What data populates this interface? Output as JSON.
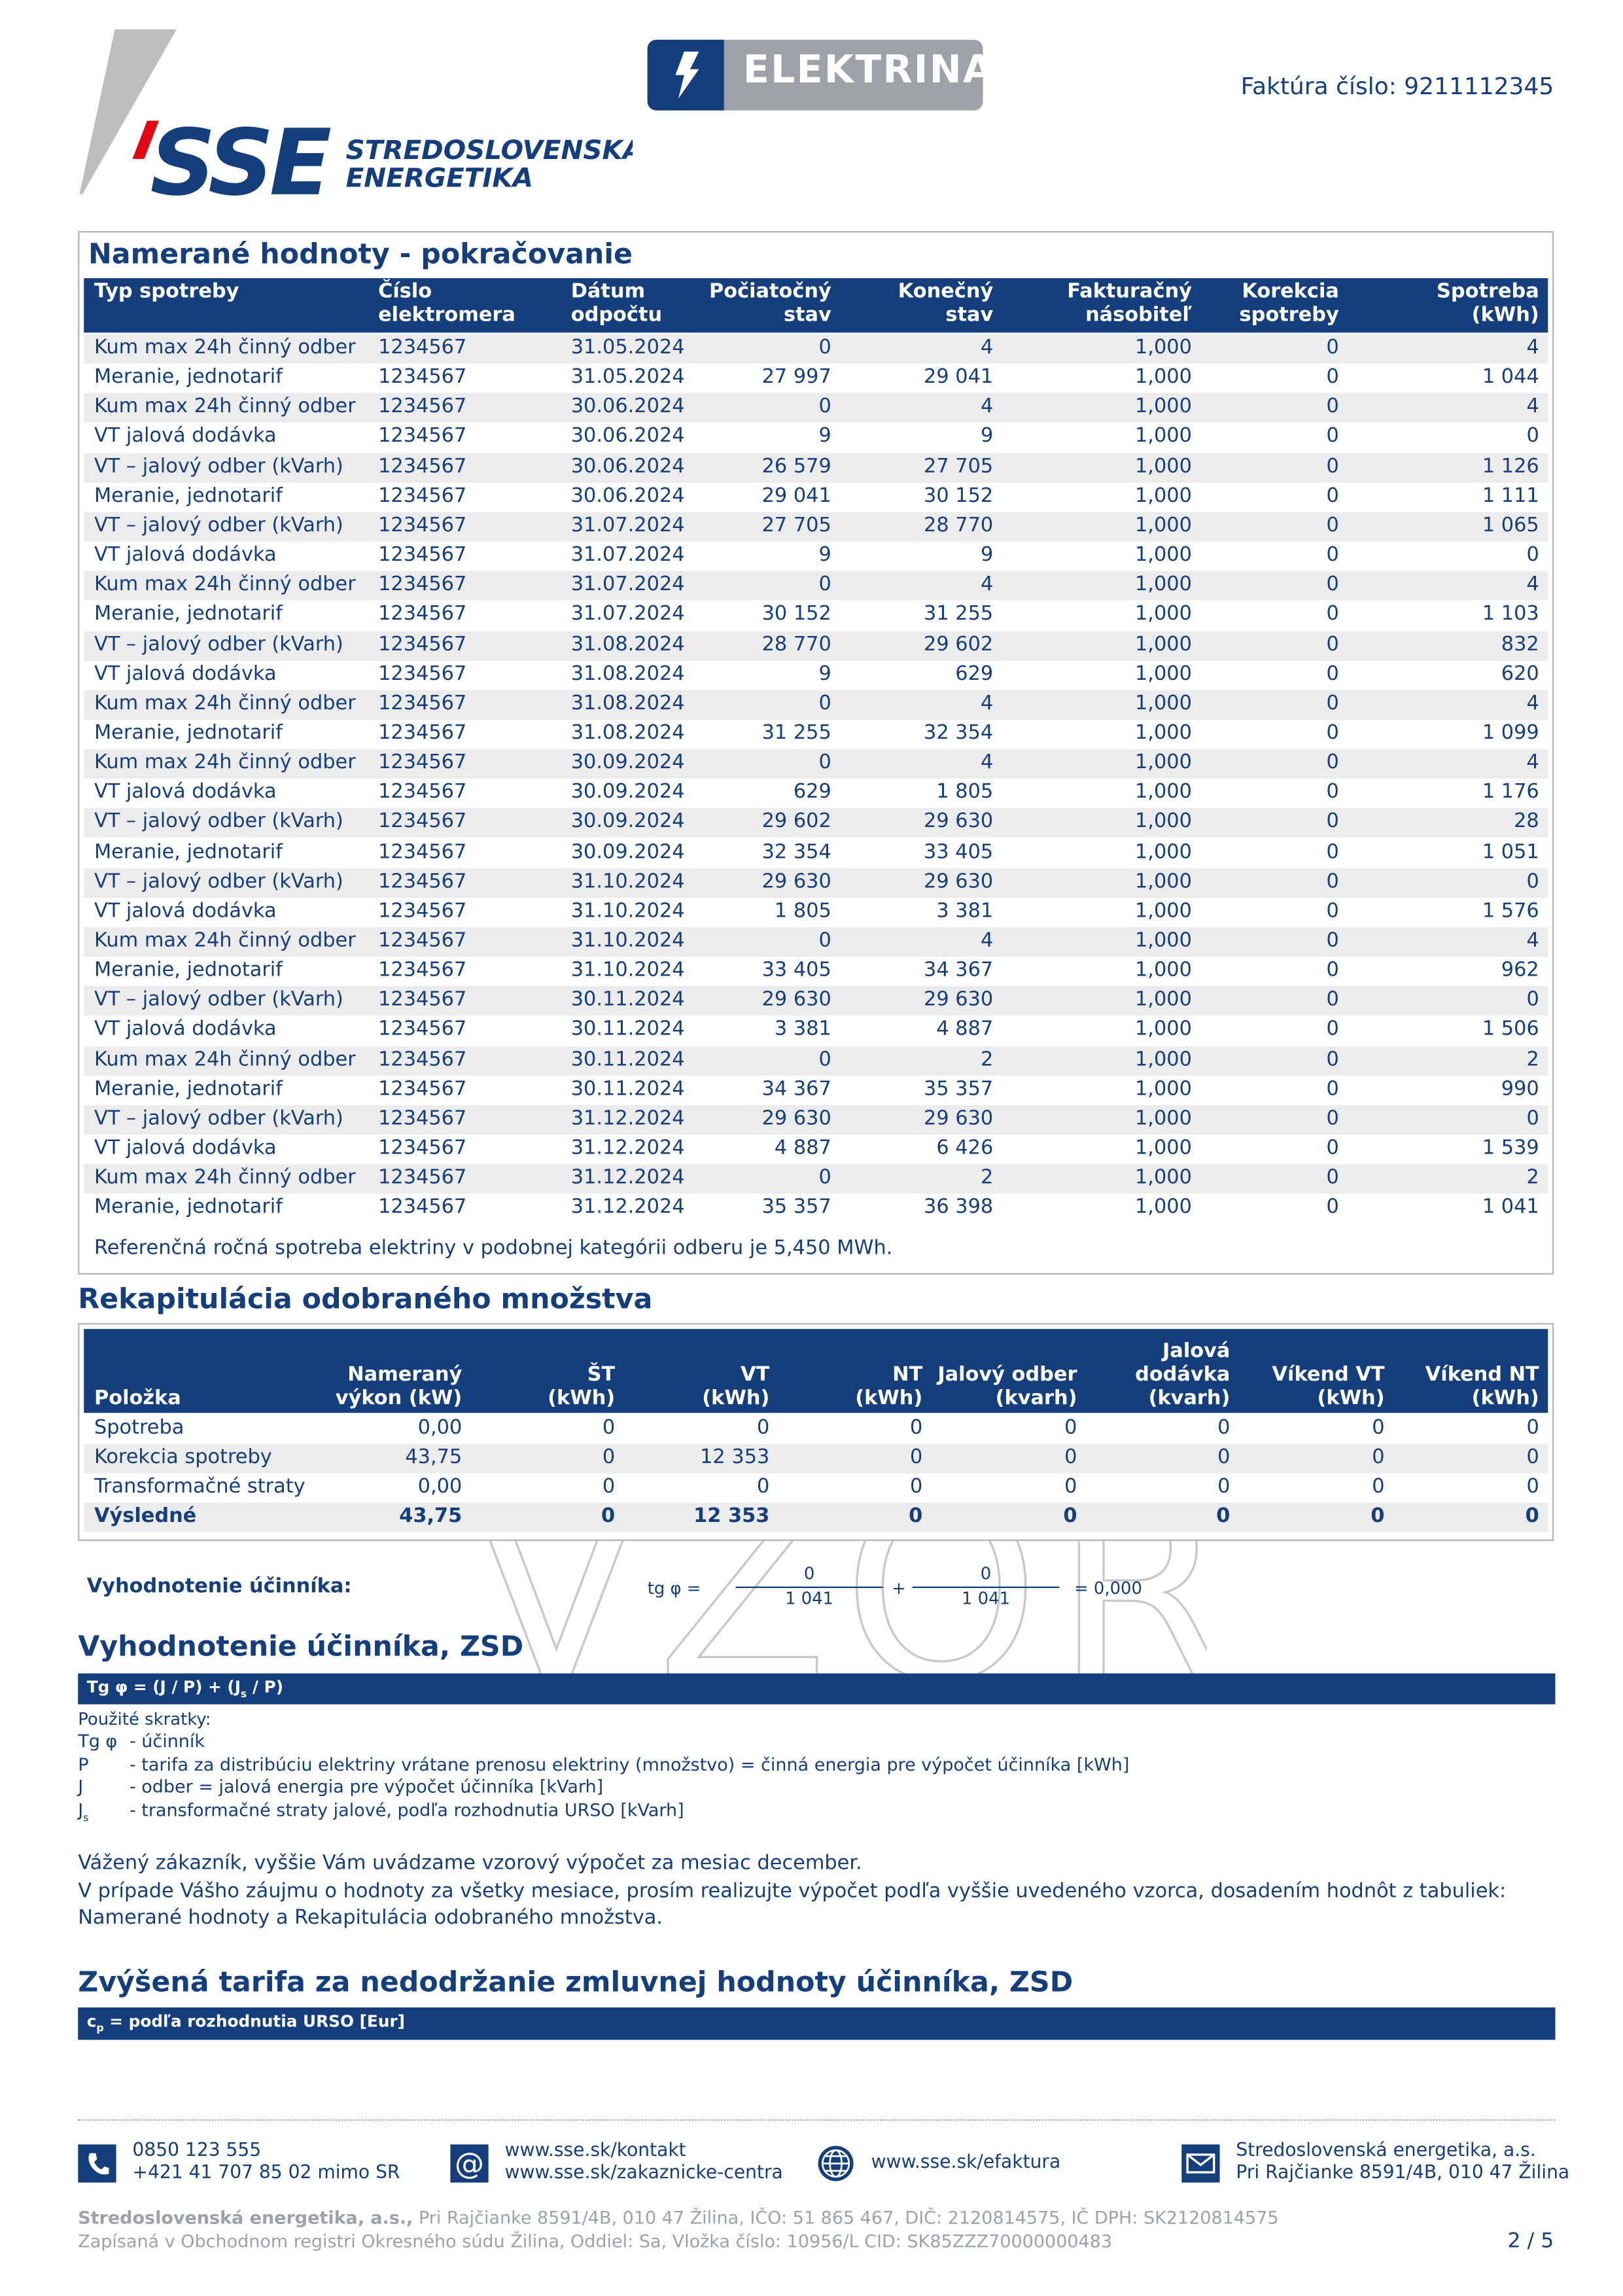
{
  "header": {
    "logo": "SSE",
    "company_line1": "STREDOSLOVENSKÁ",
    "company_line2": "ENERGETIKA",
    "product": "ELEKTRINA",
    "invoice": "Faktúra číslo: 9211112345"
  },
  "watermark": "VZOR",
  "measured": {
    "title": "Namerané hodnoty - pokračovanie",
    "columns": [
      "Typ spotreby",
      "Číslo\nelektromera",
      "Dátum\nodpočtu",
      "Počiatočný\nstav",
      "Konečný\nstav",
      "Fakturačný\nnásobiteľ",
      "Korekcia\nspotreby",
      "Spotreba\n(kWh)"
    ],
    "rows": [
      [
        "Kum max 24h činný odber",
        "1234567",
        "31.05.2024",
        "0",
        "4",
        "1,000",
        "0",
        "4"
      ],
      [
        "Meranie, jednotarif",
        "1234567",
        "31.05.2024",
        "27 997",
        "29 041",
        "1,000",
        "0",
        "1 044"
      ],
      [
        "Kum max 24h činný odber",
        "1234567",
        "30.06.2024",
        "0",
        "4",
        "1,000",
        "0",
        "4"
      ],
      [
        "VT jalová dodávka",
        "1234567",
        "30.06.2024",
        "9",
        "9",
        "1,000",
        "0",
        "0"
      ],
      [
        "VT – jalový odber (kVarh)",
        "1234567",
        "30.06.2024",
        "26 579",
        "27 705",
        "1,000",
        "0",
        "1 126"
      ],
      [
        "Meranie, jednotarif",
        "1234567",
        "30.06.2024",
        "29 041",
        "30 152",
        "1,000",
        "0",
        "1 111"
      ],
      [
        "VT – jalový odber (kVarh)",
        "1234567",
        "31.07.2024",
        "27 705",
        "28 770",
        "1,000",
        "0",
        "1 065"
      ],
      [
        "VT jalová dodávka",
        "1234567",
        "31.07.2024",
        "9",
        "9",
        "1,000",
        "0",
        "0"
      ],
      [
        "Kum max 24h činný odber",
        "1234567",
        "31.07.2024",
        "0",
        "4",
        "1,000",
        "0",
        "4"
      ],
      [
        "Meranie, jednotarif",
        "1234567",
        "31.07.2024",
        "30 152",
        "31 255",
        "1,000",
        "0",
        "1 103"
      ],
      [
        "VT – jalový odber (kVarh)",
        "1234567",
        "31.08.2024",
        "28 770",
        "29 602",
        "1,000",
        "0",
        "832"
      ],
      [
        "VT jalová dodávka",
        "1234567",
        "31.08.2024",
        "9",
        "629",
        "1,000",
        "0",
        "620"
      ],
      [
        "Kum max 24h činný odber",
        "1234567",
        "31.08.2024",
        "0",
        "4",
        "1,000",
        "0",
        "4"
      ],
      [
        "Meranie, jednotarif",
        "1234567",
        "31.08.2024",
        "31 255",
        "32 354",
        "1,000",
        "0",
        "1 099"
      ],
      [
        "Kum max 24h činný odber",
        "1234567",
        "30.09.2024",
        "0",
        "4",
        "1,000",
        "0",
        "4"
      ],
      [
        "VT jalová dodávka",
        "1234567",
        "30.09.2024",
        "629",
        "1 805",
        "1,000",
        "0",
        "1 176"
      ],
      [
        "VT – jalový odber (kVarh)",
        "1234567",
        "30.09.2024",
        "29 602",
        "29 630",
        "1,000",
        "0",
        "28"
      ],
      [
        "Meranie, jednotarif",
        "1234567",
        "30.09.2024",
        "32 354",
        "33 405",
        "1,000",
        "0",
        "1 051"
      ],
      [
        "VT – jalový odber (kVarh)",
        "1234567",
        "31.10.2024",
        "29 630",
        "29 630",
        "1,000",
        "0",
        "0"
      ],
      [
        "VT jalová dodávka",
        "1234567",
        "31.10.2024",
        "1 805",
        "3 381",
        "1,000",
        "0",
        "1 576"
      ],
      [
        "Kum max 24h činný odber",
        "1234567",
        "31.10.2024",
        "0",
        "4",
        "1,000",
        "0",
        "4"
      ],
      [
        "Meranie, jednotarif",
        "1234567",
        "31.10.2024",
        "33 405",
        "34 367",
        "1,000",
        "0",
        "962"
      ],
      [
        "VT – jalový odber (kVarh)",
        "1234567",
        "30.11.2024",
        "29 630",
        "29 630",
        "1,000",
        "0",
        "0"
      ],
      [
        "VT jalová dodávka",
        "1234567",
        "30.11.2024",
        "3 381",
        "4 887",
        "1,000",
        "0",
        "1 506"
      ],
      [
        "Kum max 24h činný odber",
        "1234567",
        "30.11.2024",
        "0",
        "2",
        "1,000",
        "0",
        "2"
      ],
      [
        "Meranie, jednotarif",
        "1234567",
        "30.11.2024",
        "34 367",
        "35 357",
        "1,000",
        "0",
        "990"
      ],
      [
        "VT – jalový odber (kVarh)",
        "1234567",
        "31.12.2024",
        "29 630",
        "29 630",
        "1,000",
        "0",
        "0"
      ],
      [
        "VT jalová dodávka",
        "1234567",
        "31.12.2024",
        "4 887",
        "6 426",
        "1,000",
        "0",
        "1 539"
      ],
      [
        "Kum max 24h činný odber",
        "1234567",
        "31.12.2024",
        "0",
        "2",
        "1,000",
        "0",
        "2"
      ],
      [
        "Meranie, jednotarif",
        "1234567",
        "31.12.2024",
        "35 357",
        "36 398",
        "1,000",
        "0",
        "1 041"
      ]
    ],
    "note": "Referenčná ročná spotreba elektriny v podobnej kategórii odberu je 5,450 MWh."
  },
  "recap": {
    "title": "Rekapitulácia odobraného množstva",
    "columns": [
      "Položka",
      "Nameraný\nvýkon (kW)",
      "ŠT\n(kWh)",
      "VT\n(kWh)",
      "NT\n(kWh)",
      "Jalový odber\n(kvarh)",
      "Jalová\ndodávka\n(kvarh)",
      "Víkend VT\n(kWh)",
      "Víkend NT\n(kWh)"
    ],
    "rows": [
      [
        "Spotreba",
        "0,00",
        "0",
        "0",
        "0",
        "0",
        "0",
        "0",
        "0"
      ],
      [
        "Korekcia spotreby",
        "43,75",
        "0",
        "12 353",
        "0",
        "0",
        "0",
        "0",
        "0"
      ],
      [
        "Transformačné straty",
        "0,00",
        "0",
        "0",
        "0",
        "0",
        "0",
        "0",
        "0"
      ],
      [
        "Výsledné",
        "43,75",
        "0",
        "12 353",
        "0",
        "0",
        "0",
        "0",
        "0"
      ]
    ]
  },
  "formula": {
    "label": "Vyhodnotenie účinníka:",
    "lhs": "tg φ =",
    "num1": "0",
    "den1": "1 041",
    "plus": "+",
    "num2": "0",
    "den2": "1 041",
    "result": "= 0,000"
  },
  "power_factor": {
    "title": "Vyhodnotenie účinníka, ZSD",
    "bar": [
      "Tg φ = (J / P) + (J",
      "s",
      " / P)"
    ],
    "abbr_title": "Použité skratky:",
    "abbr": [
      {
        "sym": "Tg φ",
        "desc": "- účinník"
      },
      {
        "sym": "P",
        "desc": "- tarifa za distribúciu elektriny vrátane prenosu elektriny (množstvo) = činná energia pre výpočet účinníka [kWh]"
      },
      {
        "sym": "J",
        "desc": "- odber = jalová energia pre výpočet účinníka [kVarh]"
      },
      {
        "sym": "J",
        "sub": "s",
        "desc": "- transformačné straty jalové, podľa rozhodnutia URSO [kVarh]"
      }
    ],
    "para1": "Vážený zákazník, vyššie Vám uvádzame vzorový výpočet za mesiac december.",
    "para2": "V prípade Vášho záujmu o hodnoty za všetky mesiace, prosím realizujte výpočet podľa vyššie uvedeného vzorca, dosadením hodnôt z tabuliek: Namerané hodnoty a Rekapitulácia odobraného množstva."
  },
  "tariff": {
    "title": "Zvýšená tarifa za nedodržanie zmluvnej hodnoty účinníka, ZSD",
    "bar": [
      "c",
      "p",
      " = podľa rozhodnutia URSO [Eur]"
    ]
  },
  "footer": {
    "contacts": [
      [
        "0850 123 555",
        "+421 41 707 85 02 mimo SR"
      ],
      [
        "www.sse.sk/kontakt",
        "www.sse.sk/zakaznicke-centra"
      ],
      [
        "www.sse.sk/efaktura"
      ],
      [
        "Stredoslovenská energetika, a.s.",
        "Pri Rajčianke 8591/4B, 010 47 Žilina"
      ]
    ],
    "legal_bold": "Stredoslovenská energetika, a.s.,",
    "legal_rest": " Pri Rajčianke 8591/4B, 010 47 Žilina, IČO: 51 865 467, DIČ: 2120814575, IČ DPH: SK2120814575",
    "register": "Zapísaná v Obchodnom registri Okresného súdu Žilina, Oddiel: Sa, Vložka číslo: 10956/L CID: SK85ZZZ70000000483",
    "page": "2 / 5"
  }
}
